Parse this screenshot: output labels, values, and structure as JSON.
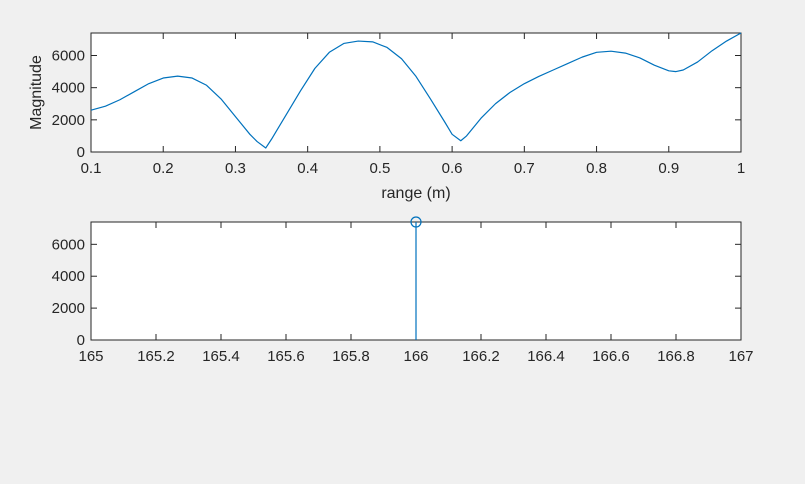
{
  "colors": {
    "figure_background": "#f0f0f0",
    "axes_background": "#ffffff",
    "axis": "#262626",
    "series": "#0072bd"
  },
  "chart_data": [
    {
      "type": "line",
      "title": "",
      "xlabel": "range (m)",
      "ylabel": "Magnitude",
      "xlim": [
        0.1,
        1
      ],
      "ylim": [
        0,
        7400
      ],
      "xticks": [
        0.1,
        0.2,
        0.3,
        0.4,
        0.5,
        0.6,
        0.7,
        0.8,
        0.9,
        1
      ],
      "xtick_labels": [
        "0.1",
        "0.2",
        "0.3",
        "0.4",
        "0.5",
        "0.6",
        "0.7",
        "0.8",
        "0.9",
        "1"
      ],
      "yticks": [
        0,
        2000,
        4000,
        6000
      ],
      "ytick_labels": [
        "0",
        "2000",
        "4000",
        "6000"
      ],
      "grid": false,
      "series": [
        {
          "x": [
            0.1,
            0.12,
            0.14,
            0.16,
            0.18,
            0.2,
            0.22,
            0.24,
            0.26,
            0.28,
            0.3,
            0.32,
            0.33,
            0.342,
            0.35,
            0.37,
            0.39,
            0.41,
            0.43,
            0.45,
            0.47,
            0.49,
            0.51,
            0.53,
            0.55,
            0.57,
            0.59,
            0.6,
            0.612,
            0.62,
            0.64,
            0.66,
            0.68,
            0.7,
            0.72,
            0.74,
            0.76,
            0.78,
            0.8,
            0.82,
            0.84,
            0.86,
            0.88,
            0.9,
            0.91,
            0.92,
            0.94,
            0.96,
            0.98,
            1.0
          ],
          "y": [
            2600,
            2850,
            3250,
            3750,
            4250,
            4600,
            4720,
            4600,
            4150,
            3300,
            2200,
            1100,
            650,
            250,
            800,
            2300,
            3800,
            5200,
            6200,
            6750,
            6900,
            6850,
            6500,
            5800,
            4700,
            3300,
            1850,
            1100,
            700,
            1000,
            2100,
            3000,
            3700,
            4250,
            4700,
            5100,
            5500,
            5900,
            6200,
            6270,
            6150,
            5850,
            5400,
            5050,
            5000,
            5100,
            5600,
            6300,
            6900,
            7400
          ]
        }
      ]
    },
    {
      "type": "stem",
      "title": "",
      "xlabel": "",
      "ylabel": "",
      "xlim": [
        165,
        167
      ],
      "ylim": [
        0,
        7400
      ],
      "xticks": [
        165,
        165.2,
        165.4,
        165.6,
        165.8,
        166,
        166.2,
        166.4,
        166.6,
        166.8,
        167
      ],
      "xtick_labels": [
        "165",
        "165.2",
        "165.4",
        "165.6",
        "165.8",
        "166",
        "166.2",
        "166.4",
        "166.6",
        "166.8",
        "167"
      ],
      "yticks": [
        0,
        2000,
        4000,
        6000
      ],
      "ytick_labels": [
        "0",
        "2000",
        "4000",
        "6000"
      ],
      "grid": false,
      "series": [
        {
          "x": [
            166
          ],
          "y": [
            7400
          ]
        }
      ]
    }
  ]
}
